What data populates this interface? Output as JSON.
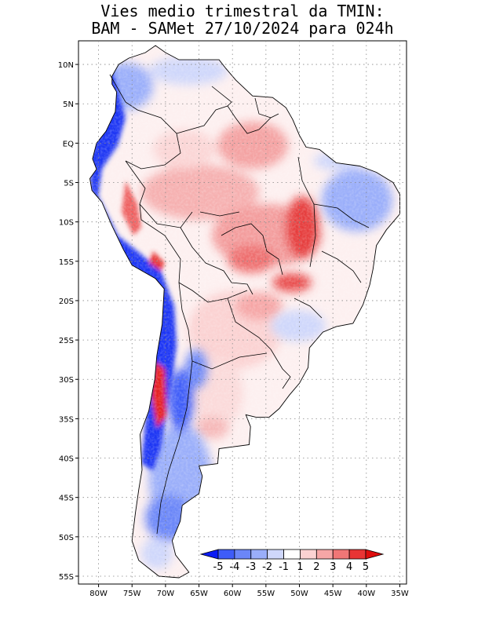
{
  "title": {
    "line1": "Vies medio trimestral da TMIN:",
    "line2": "BAM - SAMet 27/10/2024  para 024h"
  },
  "map": {
    "lon_ticks": [
      "80W",
      "75W",
      "70W",
      "65W",
      "60W",
      "55W",
      "50W",
      "45W",
      "40W",
      "35W"
    ],
    "lat_ticks": [
      "10N",
      "5N",
      "EQ",
      "5S",
      "10S",
      "15S",
      "20S",
      "25S",
      "30S",
      "35S",
      "40S",
      "45S",
      "50S",
      "55S"
    ],
    "lon_range": [
      -83,
      -34
    ],
    "lat_range": [
      13,
      -56
    ]
  },
  "colorbar": {
    "labels": [
      "-5",
      "-4",
      "-3",
      "-2",
      "-1",
      "1",
      "2",
      "3",
      "4",
      "5"
    ],
    "colors": [
      "#0b1cf5",
      "#3e5cf8",
      "#6b86f8",
      "#9aaefa",
      "#cfd7fb",
      "#ffffff",
      "#fbd2d2",
      "#f6a6a6",
      "#f07676",
      "#e83434",
      "#de0d0d"
    ]
  }
}
